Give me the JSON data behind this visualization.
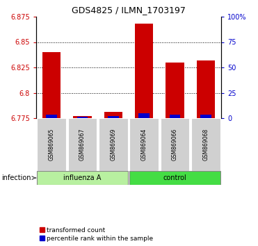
{
  "title": "GDS4825 / ILMN_1703197",
  "samples": [
    "GSM869065",
    "GSM869067",
    "GSM869069",
    "GSM869064",
    "GSM869066",
    "GSM869068"
  ],
  "transformed_counts": [
    6.84,
    6.777,
    6.781,
    6.868,
    6.83,
    6.832
  ],
  "percentile_ranks": [
    3.5,
    1.5,
    2.0,
    4.5,
    3.5,
    3.5
  ],
  "ylim_left": [
    6.775,
    6.875
  ],
  "yticks_left": [
    6.775,
    6.8,
    6.825,
    6.85,
    6.875
  ],
  "ytick_labels_left": [
    "6.775",
    "6.8",
    "6.825",
    "6.85",
    "6.875"
  ],
  "yticks_right": [
    0,
    25,
    50,
    75,
    100
  ],
  "ytick_labels_right": [
    "0",
    "25",
    "50",
    "75",
    "100%"
  ],
  "bar_bottom": 6.775,
  "red_color": "#CC0000",
  "blue_color": "#0000CC",
  "left_tick_color": "#CC0000",
  "right_tick_color": "#0000CC",
  "bar_width": 0.6,
  "blue_bar_width": 0.35,
  "percentile_max": 100,
  "group1_label": "influenza A",
  "group2_label": "control",
  "group1_color": "#b8f0a0",
  "group2_color": "#44dd44",
  "sample_box_color": "#d0d0d0",
  "infection_label": "infection",
  "legend_red": "transformed count",
  "legend_blue": "percentile rank within the sample"
}
